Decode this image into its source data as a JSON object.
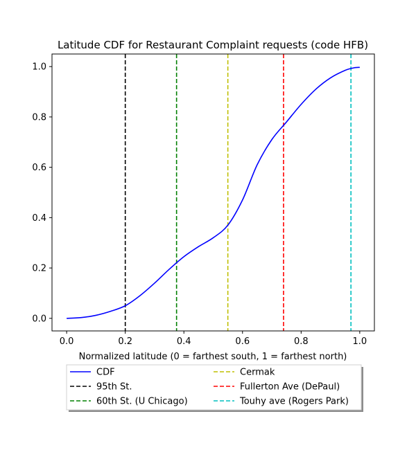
{
  "chart_data": {
    "type": "line",
    "title": "Latitude CDF for Restaurant Complaint  requests (code HFB)",
    "xlabel": "Normalized latitude (0 = farthest south, 1 = farthest north)",
    "ylabel": "",
    "xlim": [
      -0.05,
      1.05
    ],
    "ylim": [
      -0.05,
      1.05
    ],
    "xticks": [
      0.0,
      0.2,
      0.4,
      0.6,
      0.8,
      1.0
    ],
    "yticks": [
      0.0,
      0.2,
      0.4,
      0.6,
      0.8,
      1.0
    ],
    "grid": false,
    "legend_position": "below",
    "series": [
      {
        "name": "CDF",
        "color": "#0000ff",
        "style": "solid",
        "x": [
          0.0,
          0.05,
          0.1,
          0.15,
          0.2,
          0.25,
          0.3,
          0.35,
          0.4,
          0.45,
          0.5,
          0.55,
          0.6,
          0.65,
          0.7,
          0.75,
          0.8,
          0.85,
          0.9,
          0.95,
          0.98,
          1.0
        ],
        "y": [
          0.0,
          0.003,
          0.012,
          0.028,
          0.05,
          0.09,
          0.14,
          0.195,
          0.245,
          0.285,
          0.32,
          0.37,
          0.47,
          0.61,
          0.71,
          0.78,
          0.85,
          0.91,
          0.955,
          0.985,
          0.995,
          0.997
        ]
      }
    ],
    "vlines": [
      {
        "name": "95th St.",
        "x": 0.2,
        "color": "#000000"
      },
      {
        "name": "60th St. (U Chicago)",
        "x": 0.375,
        "color": "#008000"
      },
      {
        "name": "Cermak",
        "x": 0.55,
        "color": "#bfbf00"
      },
      {
        "name": "Fullerton Ave (DePaul)",
        "x": 0.74,
        "color": "#ff0000"
      },
      {
        "name": "Touhy ave (Rogers Park)",
        "x": 0.97,
        "color": "#00bfbf"
      }
    ]
  }
}
